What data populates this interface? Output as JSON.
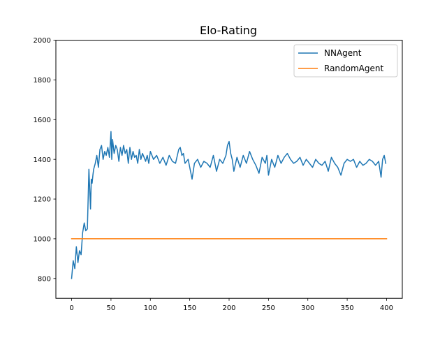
{
  "chart_data": {
    "type": "line",
    "title": "Elo-Rating",
    "xlabel": "",
    "ylabel": "",
    "xlim": [
      -20,
      420
    ],
    "ylim": [
      700,
      2000
    ],
    "xticks": [
      0,
      50,
      100,
      150,
      200,
      250,
      300,
      350,
      400
    ],
    "yticks": [
      800,
      1000,
      1200,
      1400,
      1600,
      1800,
      2000
    ],
    "grid": false,
    "legend_position": "top-right",
    "series": [
      {
        "name": "NNAgent",
        "color": "#1f77b4",
        "x": [
          0,
          2,
          4,
          6,
          8,
          10,
          12,
          14,
          16,
          18,
          20,
          22,
          24,
          25,
          26,
          27,
          28,
          30,
          32,
          34,
          36,
          38,
          40,
          42,
          44,
          46,
          48,
          50,
          51,
          52,
          54,
          56,
          58,
          60,
          62,
          64,
          66,
          68,
          70,
          72,
          74,
          76,
          78,
          80,
          82,
          84,
          86,
          88,
          90,
          92,
          94,
          96,
          98,
          100,
          104,
          108,
          112,
          116,
          120,
          124,
          128,
          132,
          136,
          138,
          140,
          142,
          144,
          148,
          152,
          153,
          156,
          160,
          164,
          168,
          172,
          176,
          180,
          184,
          188,
          192,
          196,
          198,
          200,
          202,
          204,
          206,
          210,
          214,
          218,
          222,
          226,
          230,
          234,
          238,
          242,
          246,
          248,
          250,
          254,
          258,
          262,
          266,
          270,
          274,
          278,
          282,
          286,
          290,
          294,
          298,
          302,
          306,
          310,
          314,
          318,
          322,
          326,
          330,
          334,
          338,
          342,
          346,
          350,
          354,
          358,
          362,
          366,
          370,
          374,
          378,
          382,
          386,
          390,
          393,
          395,
          397,
          399
        ],
        "y": [
          800,
          890,
          850,
          960,
          880,
          940,
          920,
          1030,
          1080,
          1040,
          1050,
          1350,
          1150,
          1300,
          1280,
          1320,
          1350,
          1380,
          1420,
          1360,
          1450,
          1470,
          1400,
          1440,
          1420,
          1460,
          1410,
          1540,
          1400,
          1500,
          1430,
          1470,
          1450,
          1390,
          1460,
          1420,
          1470,
          1430,
          1450,
          1380,
          1460,
          1400,
          1440,
          1410,
          1420,
          1380,
          1450,
          1400,
          1430,
          1410,
          1390,
          1420,
          1380,
          1440,
          1400,
          1420,
          1380,
          1410,
          1370,
          1420,
          1390,
          1380,
          1450,
          1460,
          1420,
          1430,
          1380,
          1400,
          1320,
          1300,
          1380,
          1400,
          1360,
          1390,
          1380,
          1360,
          1420,
          1340,
          1400,
          1380,
          1420,
          1470,
          1490,
          1430,
          1400,
          1340,
          1410,
          1360,
          1420,
          1380,
          1440,
          1400,
          1370,
          1330,
          1410,
          1380,
          1420,
          1320,
          1400,
          1360,
          1420,
          1380,
          1410,
          1430,
          1400,
          1380,
          1390,
          1410,
          1370,
          1400,
          1380,
          1360,
          1400,
          1380,
          1370,
          1390,
          1340,
          1410,
          1380,
          1360,
          1320,
          1380,
          1400,
          1390,
          1400,
          1360,
          1390,
          1370,
          1380,
          1400,
          1390,
          1370,
          1390,
          1310,
          1400,
          1420,
          1380
        ]
      },
      {
        "name": "RandomAgent",
        "color": "#ff7f0e",
        "x": [
          0,
          400
        ],
        "y": [
          1000,
          1000
        ]
      }
    ]
  }
}
